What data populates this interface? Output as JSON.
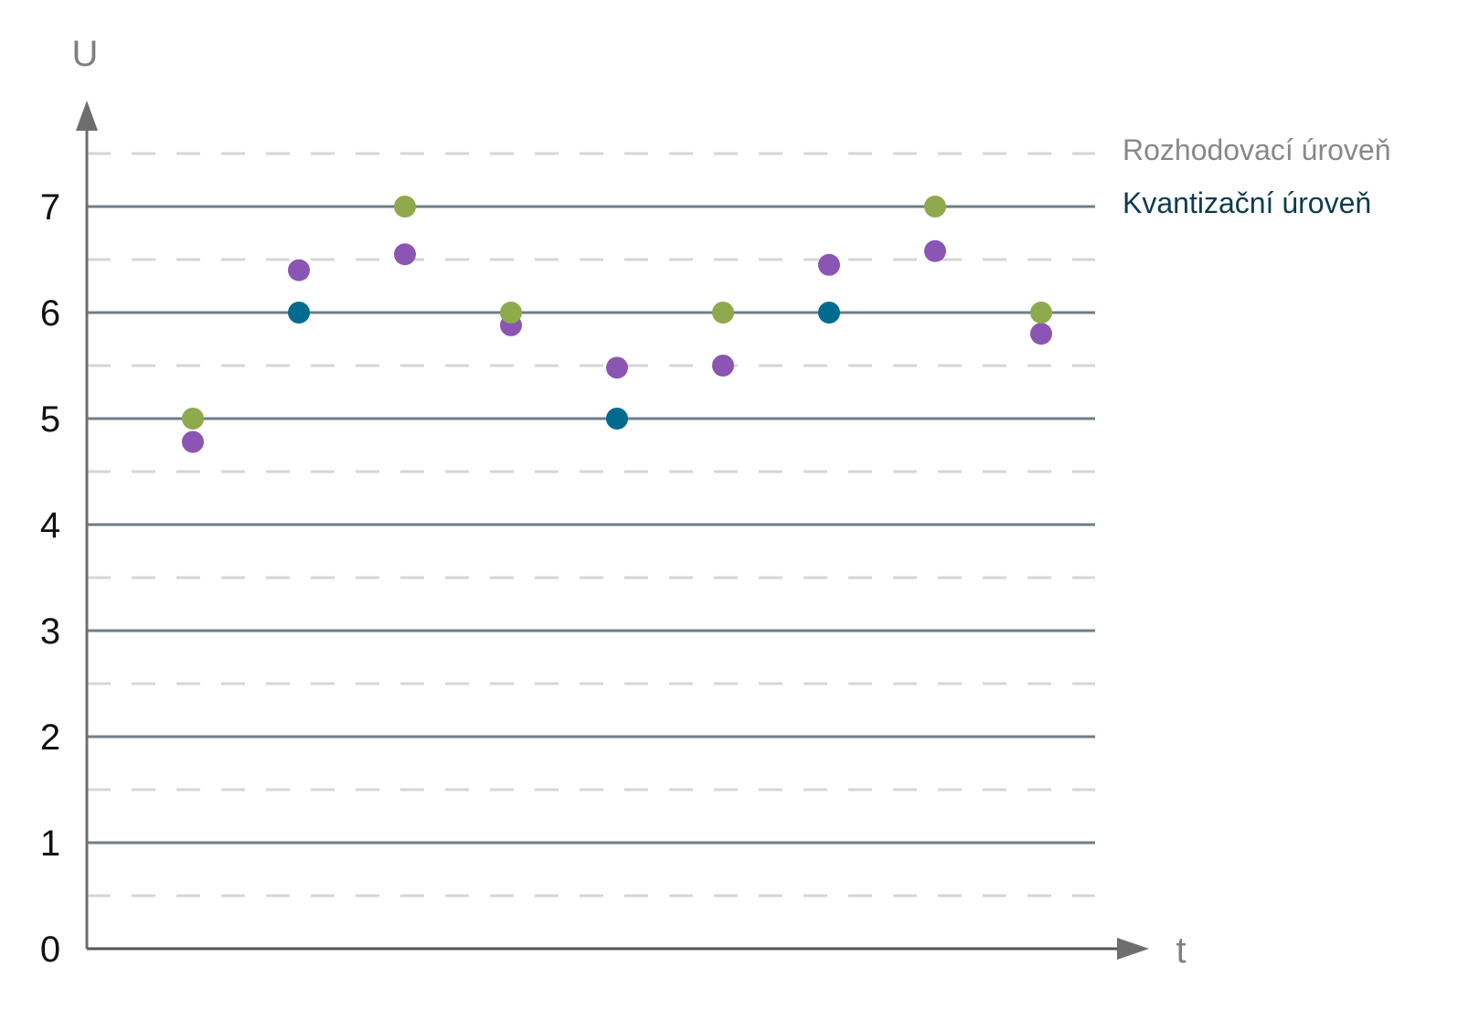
{
  "chart_data": {
    "type": "scatter",
    "xlabel": "t",
    "ylabel": "U",
    "ylim": [
      0,
      7.6
    ],
    "yticks": [
      "0",
      "1",
      "2",
      "3",
      "4",
      "5",
      "6",
      "7"
    ],
    "quantization_levels": [
      1,
      2,
      3,
      4,
      5,
      6,
      7
    ],
    "decision_levels": [
      0.5,
      1.5,
      2.5,
      3.5,
      4.5,
      5.5,
      6.5,
      7.5
    ],
    "x": [
      1,
      2,
      3,
      4,
      5,
      6,
      7,
      8,
      9
    ],
    "series": [
      {
        "values": [
          4.78,
          6.4,
          6.55,
          5.88,
          5.48,
          5.5,
          6.45,
          6.58,
          5.8
        ]
      },
      {
        "values": [
          5,
          6,
          7,
          6,
          5,
          6,
          6,
          7,
          6
        ],
        "point_colors": [
          "#8eaa4c",
          "#006b8f",
          "#8eaa4c",
          "#8eaa4c",
          "#006b8f",
          "#8eaa4c",
          "#006b8f",
          "#8eaa4c",
          "#8eaa4c"
        ]
      }
    ],
    "legend": [
      {
        "label": "Rozhodovací úroveň",
        "color": "#888888"
      },
      {
        "label": "Kvantizační úroveň",
        "color": "#0e3b4f"
      }
    ],
    "colors": {
      "sample": "#8b55b3",
      "quantized_up": "#8eaa4c",
      "quantized_down": "#006b8f",
      "quantization_line": "#6d7f87",
      "decision_line": "#d6d6d6",
      "axis": "#6e6e6e"
    }
  }
}
